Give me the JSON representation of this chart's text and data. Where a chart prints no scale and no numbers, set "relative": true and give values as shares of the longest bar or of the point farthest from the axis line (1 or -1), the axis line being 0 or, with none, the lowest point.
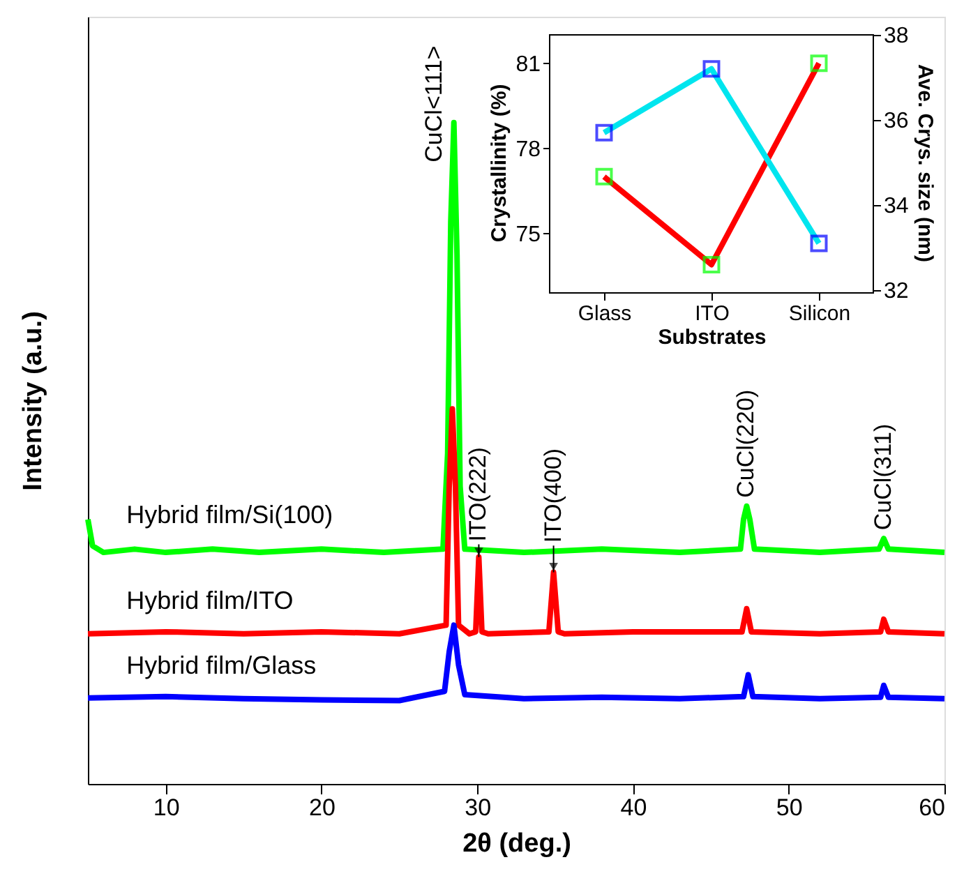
{
  "chart_data": [
    {
      "type": "line",
      "relative": true,
      "xlabel": "2θ (deg.)",
      "ylabel": "Intensity (a.u.)",
      "xlim": [
        5,
        60
      ],
      "xticks": [
        10,
        20,
        30,
        40,
        50,
        60
      ],
      "tick_labels": "x",
      "grid": false,
      "marker": "none",
      "line_style": "solid",
      "series": [
        {
          "name": "Hybrid film/Si(100)",
          "color": "#00ff00",
          "x": [
            5.0,
            5.3,
            6,
            8,
            10,
            13,
            16,
            20,
            24,
            27.8,
            28.1,
            28.3,
            28.5,
            28.7,
            28.9,
            29.2,
            33,
            38,
            43,
            46.9,
            47.1,
            47.3,
            47.5,
            47.8,
            52,
            55.8,
            56.1,
            56.4,
            60
          ],
          "values": [
            0.4,
            0.36,
            0.35,
            0.355,
            0.35,
            0.355,
            0.35,
            0.355,
            0.35,
            0.355,
            0.5,
            0.85,
            1.0,
            0.8,
            0.45,
            0.355,
            0.35,
            0.355,
            0.35,
            0.355,
            0.4,
            0.42,
            0.4,
            0.355,
            0.35,
            0.355,
            0.371,
            0.355,
            0.35
          ]
        },
        {
          "name": "Hybrid film/ITO",
          "color": "#ff0000",
          "x": [
            5,
            10,
            15,
            20,
            25,
            28.0,
            28.2,
            28.4,
            28.6,
            28.8,
            29.5,
            29.9,
            30.1,
            30.3,
            30.7,
            34.6,
            34.9,
            35.2,
            35.6,
            40,
            47.0,
            47.3,
            47.6,
            52,
            55.9,
            56.1,
            56.4,
            60
          ],
          "values": [
            0.227,
            0.23,
            0.227,
            0.23,
            0.227,
            0.24,
            0.45,
            0.567,
            0.45,
            0.24,
            0.227,
            0.23,
            0.343,
            0.23,
            0.227,
            0.23,
            0.32,
            0.23,
            0.227,
            0.23,
            0.23,
            0.265,
            0.23,
            0.227,
            0.23,
            0.249,
            0.23,
            0.227
          ]
        },
        {
          "name": "Hybrid film/Glass",
          "color": "#0000ff",
          "x": [
            5,
            10,
            15,
            20,
            25,
            27.9,
            28.2,
            28.5,
            28.8,
            29.2,
            33,
            38,
            43,
            47.1,
            47.4,
            47.7,
            52,
            55.9,
            56.1,
            56.4,
            60
          ],
          "values": [
            0.13,
            0.132,
            0.129,
            0.127,
            0.126,
            0.14,
            0.2,
            0.24,
            0.18,
            0.135,
            0.129,
            0.131,
            0.129,
            0.132,
            0.165,
            0.132,
            0.129,
            0.131,
            0.149,
            0.131,
            0.129
          ]
        }
      ],
      "annotations": [
        {
          "text": "CuCl<111>",
          "x": 28.5,
          "y": 1.0
        },
        {
          "text": "ITO(222)",
          "x": 30.1,
          "y": 0.343
        },
        {
          "text": "ITO(400)",
          "x": 34.9,
          "y": 0.32
        },
        {
          "text": "CuCl(220)",
          "x": 47.3,
          "y": 0.42
        },
        {
          "text": "CuCl(311)",
          "x": 56.1,
          "y": 0.371
        }
      ]
    },
    {
      "type": "line",
      "categories": [
        "Glass",
        "ITO",
        "Silicon"
      ],
      "xlabel": "Substrates",
      "ylabel": "Crystallinity (%)",
      "y2label": "Ave. Crys. size (nm)",
      "ylim": [
        73,
        82
      ],
      "yticks": [
        75,
        78,
        81
      ],
      "y2lim": [
        32,
        38
      ],
      "y2ticks": [
        32,
        34,
        36,
        38
      ],
      "marker": "square",
      "grid": false,
      "series": [
        {
          "color": "#ff0000",
          "colors": [
            "#00ff00",
            "#00ff00",
            "#00ff00"
          ],
          "values": [
            77.0,
            73.9,
            81.0
          ],
          "axis": "y"
        },
        {
          "color": "#00e5ee",
          "colors": [
            "#0000ff",
            "#0000ff",
            "#0000ff"
          ],
          "values": [
            35.7,
            37.2,
            33.1
          ],
          "axis": "y2"
        }
      ]
    }
  ]
}
